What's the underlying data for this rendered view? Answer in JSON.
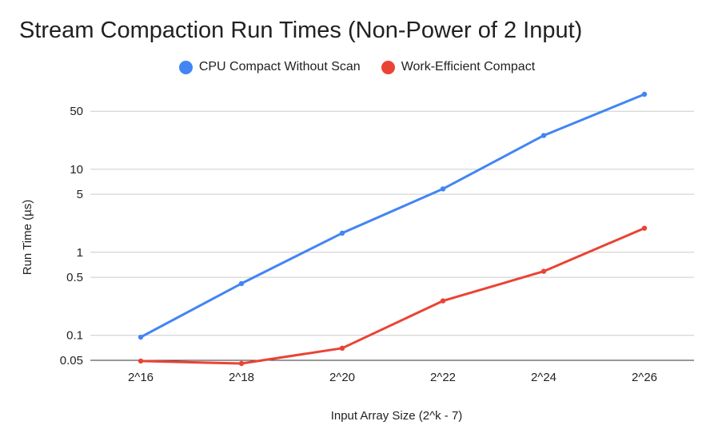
{
  "chart_data": {
    "type": "line",
    "title": "Stream Compaction Run Times (Non-Power of 2 Input)",
    "xlabel": "Input Array Size (2^k - 7)",
    "ylabel": "Run Time (µs)",
    "y_scale": "log",
    "ylim": [
      0.05,
      80
    ],
    "categories": [
      "2^16",
      "2^18",
      "2^20",
      "2^22",
      "2^24",
      "2^26"
    ],
    "y_ticks": [
      0.05,
      0.1,
      0.5,
      1,
      5,
      10,
      50
    ],
    "y_tick_labels": [
      "0.05",
      "0.1",
      "0.5",
      "1",
      "5",
      "10",
      "50"
    ],
    "grid": true,
    "legend_position": "top",
    "series": [
      {
        "name": "CPU Compact Without Scan",
        "color": "#4285f4",
        "values": [
          0.095,
          0.42,
          1.7,
          5.8,
          25.5,
          80
        ]
      },
      {
        "name": "Work-Efficient Compact",
        "color": "#ea4335",
        "values": [
          0.049,
          0.045,
          0.07,
          0.26,
          0.59,
          1.95
        ]
      }
    ]
  }
}
